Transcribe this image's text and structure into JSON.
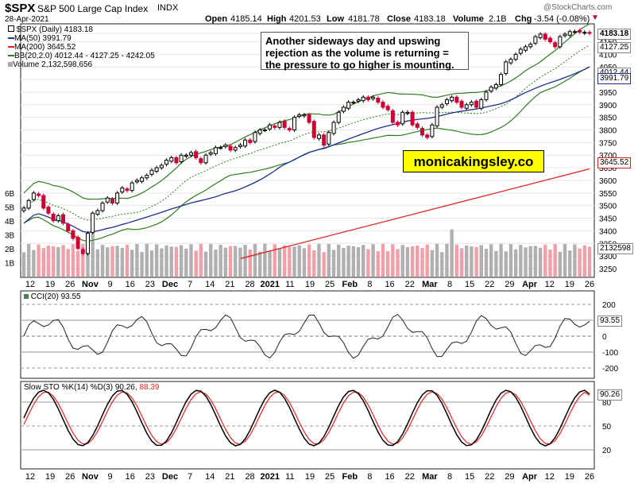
{
  "header": {
    "symbol": "$SPX",
    "name": "S&P 500 Large Cap Index",
    "exchange": "INDX",
    "date": "28-Apr-2021",
    "watermark": "@StockCharts.com",
    "open_label": "Open",
    "open": "4185.14",
    "high_label": "High",
    "high": "4201.53",
    "low_label": "Low",
    "low": "4181.78",
    "close_label": "Close",
    "close": "4183.18",
    "volume_label": "Volume",
    "volume": "2.1B",
    "chg_label": "Chg",
    "chg": "-3.54 (-0.08%)"
  },
  "legend": {
    "price": "$SPX (Daily) 4183.18",
    "ma50": "MA(50) 3991.79",
    "ma200": "MA(200) 3645.52",
    "bb": "BB(20,2.0) 4012.44 - 4127.25 - 4242.05",
    "volume": "Volume 2,132,598,656"
  },
  "annotation": "Another sideways day and upswing rejection as the volume is returning = the pressure to go higher is mounting.",
  "brand": "monicakingsley.co",
  "right_labels": {
    "close": "4183.18",
    "bb_mid": "4127.25",
    "bb_low": "4012.44",
    "ma50": "3991.79",
    "ma200": "3645.52",
    "volume": "2132598",
    "cci": "93.55",
    "sto": "90.26"
  },
  "cci_legend": "CCI(20) 93.55",
  "sto_legend_a": "Slow STO %K(14) %D(3) 90.26,",
  "sto_legend_b": "88.39",
  "colors": {
    "up": "#000000",
    "down": "#cc0033",
    "ma50": "#1f2f8f",
    "ma200": "#dd2222",
    "bb": "#2e7d1e",
    "vol_up": "#b0b0b0",
    "vol_down": "#f0a0a8",
    "cci_fill_pos": "#4f7f4f",
    "cci_fill_neg": "#8a5a5a",
    "sto_k": "#000000",
    "sto_d": "#ee2222"
  },
  "chart_data": {
    "type": "line",
    "price_axis": {
      "ticks": [
        4183,
        4150,
        4100,
        4050,
        4000,
        3950,
        3900,
        3850,
        3800,
        3750,
        3700,
        3650,
        3600,
        3550,
        3500,
        3450,
        3400,
        3350,
        3300,
        3250
      ],
      "labels": [
        "4183",
        "4150",
        "4100",
        "4050",
        "4000",
        "3950",
        "3900",
        "3850",
        "3800",
        "3750",
        "3700",
        "3650",
        "3600",
        "3550",
        "3500",
        "3450",
        "3400",
        "3350",
        "3300",
        "3250"
      ]
    },
    "volume_axis": {
      "labels": [
        "6B",
        "5B",
        "4B",
        "3B",
        "2B",
        "1B"
      ],
      "values": [
        6,
        5,
        4,
        3,
        2,
        1
      ]
    },
    "cci_axis": {
      "labels": [
        "200",
        "100",
        "0",
        "-100",
        "-200"
      ],
      "values": [
        200,
        100,
        0,
        -100,
        -200
      ]
    },
    "sto_axis": {
      "labels": [
        "80",
        "50",
        "20"
      ],
      "values": [
        80,
        50,
        20
      ]
    },
    "x_axis": {
      "labels": [
        "12",
        "19",
        "26",
        "Nov",
        "9",
        "16",
        "23",
        "Dec",
        "7",
        "14",
        "21",
        "28",
        "2021",
        "11",
        "19",
        "25",
        "Feb",
        "8",
        "16",
        "22",
        "Mar",
        "8",
        "15",
        "22",
        "29",
        "Apr",
        "12",
        "19",
        "26"
      ],
      "bold": [
        false,
        false,
        false,
        true,
        false,
        false,
        false,
        true,
        false,
        false,
        false,
        false,
        true,
        false,
        false,
        false,
        true,
        false,
        false,
        false,
        true,
        false,
        false,
        false,
        false,
        true,
        false,
        false,
        false
      ]
    },
    "closes": [
      3490,
      3520,
      3550,
      3540,
      3490,
      3470,
      3440,
      3460,
      3430,
      3400,
      3370,
      3330,
      3310,
      3390,
      3470,
      3480,
      3510,
      3530,
      3510,
      3550,
      3570,
      3560,
      3590,
      3600,
      3610,
      3620,
      3640,
      3650,
      3660,
      3680,
      3690,
      3670,
      3700,
      3700,
      3710,
      3690,
      3670,
      3700,
      3710,
      3730,
      3730,
      3740,
      3720,
      3730,
      3740,
      3760,
      3750,
      3790,
      3800,
      3800,
      3820,
      3810,
      3830,
      3810,
      3800,
      3850,
      3860,
      3860,
      3830,
      3770,
      3780,
      3740,
      3790,
      3830,
      3870,
      3890,
      3910,
      3910,
      3920,
      3930,
      3920,
      3930,
      3910,
      3890,
      3880,
      3830,
      3820,
      3870,
      3870,
      3820,
      3810,
      3780,
      3770,
      3820,
      3890,
      3900,
      3920,
      3930,
      3910,
      3890,
      3900,
      3910,
      3890,
      3920,
      3950,
      3970,
      3980,
      4020,
      4070,
      4080,
      4100,
      4120,
      4130,
      4140,
      4170,
      4180,
      4160,
      4150,
      4130,
      4170,
      4180,
      4190,
      4190,
      4188,
      4187,
      4183
    ],
    "ma50_end": 3991.79,
    "ma200_end": 3645.52,
    "bb": {
      "lower": 4012.44,
      "mid": 4127.25,
      "upper": 4242.05
    },
    "volume_end": 2132598656,
    "cci_end": 93.55,
    "sto_k_end": 90.26,
    "sto_d_end": 88.39
  }
}
